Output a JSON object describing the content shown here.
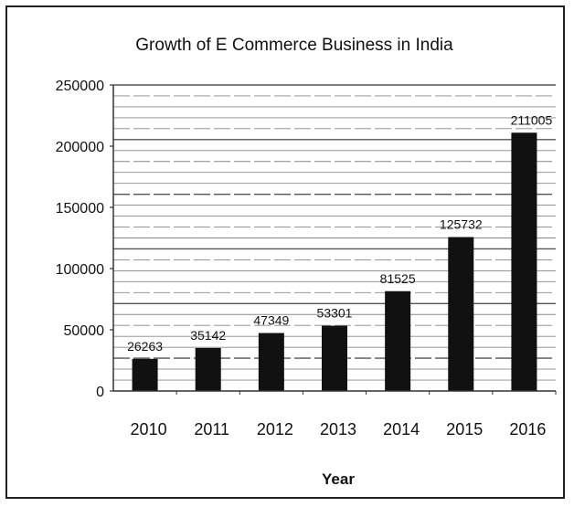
{
  "chart_data": {
    "type": "bar",
    "title": "Growth of E Commerce Business in India",
    "xlabel": "Year",
    "ylabel": "",
    "categories": [
      "2010",
      "2011",
      "2012",
      "2013",
      "2014",
      "2015",
      "2016"
    ],
    "values": [
      26263,
      35142,
      47349,
      53301,
      81525,
      125732,
      211005
    ],
    "data_labels": [
      "26263",
      "35142",
      "47349",
      "53301",
      "81525",
      "125732",
      "211005"
    ],
    "ylim": [
      0,
      250000
    ],
    "yticks": [
      0,
      50000,
      100000,
      150000,
      200000,
      250000
    ],
    "ytick_labels": [
      "0",
      "50000",
      "100000",
      "150000",
      "200000",
      "250000"
    ],
    "grid": true,
    "legend": "none",
    "bar_color": "#111111"
  }
}
